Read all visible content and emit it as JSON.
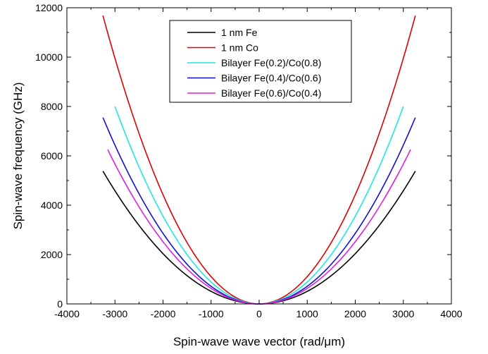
{
  "chart_data": {
    "type": "line",
    "title": "",
    "xlabel": "Spin-wave wave vector (rad/μm)",
    "ylabel": "Spin-wave frequency (GHz)",
    "xlim": [
      -4000,
      4000
    ],
    "ylim": [
      0,
      12000
    ],
    "xticks": [
      -4000,
      -3000,
      -2000,
      -1000,
      0,
      1000,
      2000,
      3000,
      4000
    ],
    "yticks": [
      0,
      2000,
      4000,
      6000,
      8000,
      10000,
      12000
    ],
    "grid": false,
    "legend_position": "top-center",
    "series": [
      {
        "name": "1 nm Fe",
        "color": "#000000",
        "x": [
          -3250,
          -3000,
          -2500,
          -2000,
          -1500,
          -1000,
          -500,
          0,
          500,
          1000,
          1500,
          2000,
          2500,
          3000,
          3250
        ],
        "y": [
          5380,
          4590,
          3190,
          2040,
          1150,
          510,
          130,
          0,
          130,
          510,
          1150,
          2040,
          3190,
          4590,
          5380
        ]
      },
      {
        "name": "1 nm Co",
        "color": "#e00000",
        "x": [
          -3250,
          -3000,
          -2500,
          -2000,
          -1500,
          -1000,
          -500,
          0,
          500,
          1000,
          1500,
          2000,
          2500,
          3000,
          3250
        ],
        "y": [
          11680,
          9950,
          6910,
          4420,
          2490,
          1110,
          280,
          0,
          280,
          1110,
          2490,
          4420,
          6910,
          9950,
          11680
        ]
      },
      {
        "name": "Bilayer Fe(0.2)/Co(0.8)",
        "color": "#22e6e6",
        "x": [
          -3000,
          -2500,
          -2000,
          -1500,
          -1000,
          -500,
          0,
          500,
          1000,
          1500,
          2000,
          2500,
          3000
        ],
        "y": [
          8000,
          5560,
          3560,
          2000,
          890,
          220,
          0,
          220,
          890,
          2000,
          3560,
          5560,
          8000
        ]
      },
      {
        "name": "Bilayer Fe(0.4)/Co(0.6)",
        "color": "#1010d0",
        "x": [
          -3250,
          -3000,
          -2500,
          -2000,
          -1500,
          -1000,
          -500,
          0,
          500,
          1000,
          1500,
          2000,
          2500,
          3000,
          3250
        ],
        "y": [
          7550,
          6430,
          4470,
          2860,
          1610,
          710,
          180,
          0,
          180,
          710,
          1610,
          2860,
          4470,
          6430,
          7550
        ]
      },
      {
        "name": "Bilayer Fe(0.6)/Co(0.4)",
        "color": "#e020e0",
        "x": [
          -3150,
          -3000,
          -2500,
          -2000,
          -1500,
          -1000,
          -500,
          0,
          500,
          1000,
          1500,
          2000,
          2500,
          3000,
          3150
        ],
        "y": [
          6250,
          5670,
          3940,
          2520,
          1420,
          630,
          160,
          0,
          160,
          630,
          1420,
          2520,
          3940,
          5670,
          6250
        ]
      }
    ]
  }
}
